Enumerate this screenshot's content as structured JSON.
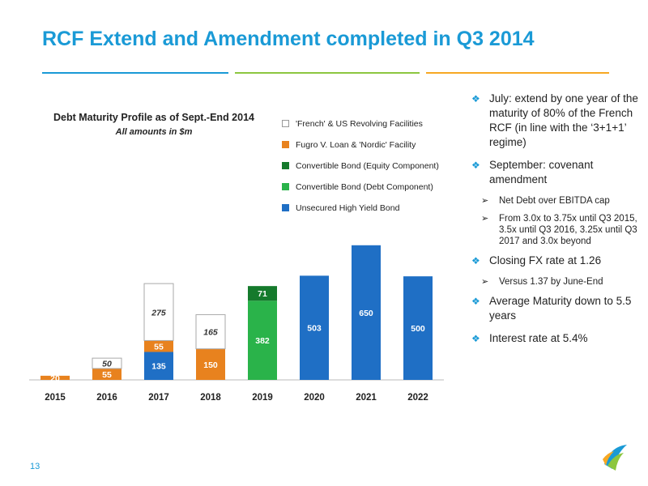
{
  "slide": {
    "title": "RCF Extend and Amendment completed in Q3 2014",
    "page_number": "13",
    "accent_colors": [
      "#1a9ad6",
      "#8cc63f",
      "#f7a823"
    ]
  },
  "bullets": [
    {
      "kind": "main",
      "text": "July: extend by one year of the maturity of 80% of the French RCF (in line with the ‘3+1+1’ regime)"
    },
    {
      "kind": "main",
      "text": "September: covenant amendment"
    },
    {
      "kind": "sub",
      "text": "Net Debt over EBITDA cap"
    },
    {
      "kind": "sub",
      "text": "From 3.0x to 3.75x until Q3 2015, 3.5x until Q3 2016, 3.25x until Q3 2017 and 3.0x beyond"
    },
    {
      "kind": "main",
      "text": "Closing FX rate at 1.26"
    },
    {
      "kind": "sub",
      "text": "Versus 1.37 by June-End"
    },
    {
      "kind": "main",
      "text": "Average Maturity down to 5.5 years"
    },
    {
      "kind": "main",
      "text": "Interest rate at 5.4%"
    }
  ],
  "chart_data": {
    "type": "bar",
    "stacked": true,
    "title": "Debt Maturity Profile as of Sept.-End 2014",
    "subtitle": "All amounts in $m",
    "categories": [
      "2015",
      "2016",
      "2017",
      "2018",
      "2019",
      "2020",
      "2021",
      "2022"
    ],
    "ylim": [
      0,
      700
    ],
    "grid": false,
    "legend_position": "top-right",
    "series": [
      {
        "name": "Unsecured High Yield Bond",
        "color": "#1f6fc5",
        "values": [
          0,
          0,
          135,
          0,
          0,
          503,
          650,
          500
        ]
      },
      {
        "name": "Convertible Bond (Debt Component)",
        "color": "#2ab34a",
        "values": [
          0,
          0,
          0,
          0,
          382,
          0,
          0,
          0
        ]
      },
      {
        "name": "Convertible Bond (Equity Component)",
        "color": "#157a2c",
        "values": [
          0,
          0,
          0,
          0,
          71,
          0,
          0,
          0
        ]
      },
      {
        "name": "Fugro V. Loan & 'Nordic' Facility",
        "color": "#e8821e",
        "values": [
          20,
          55,
          55,
          150,
          0,
          0,
          0,
          0
        ]
      },
      {
        "name": "'French' & US Revolving Facilities",
        "color": "#ffffff",
        "values": [
          0,
          50,
          275,
          165,
          0,
          0,
          0,
          0
        ]
      }
    ]
  }
}
